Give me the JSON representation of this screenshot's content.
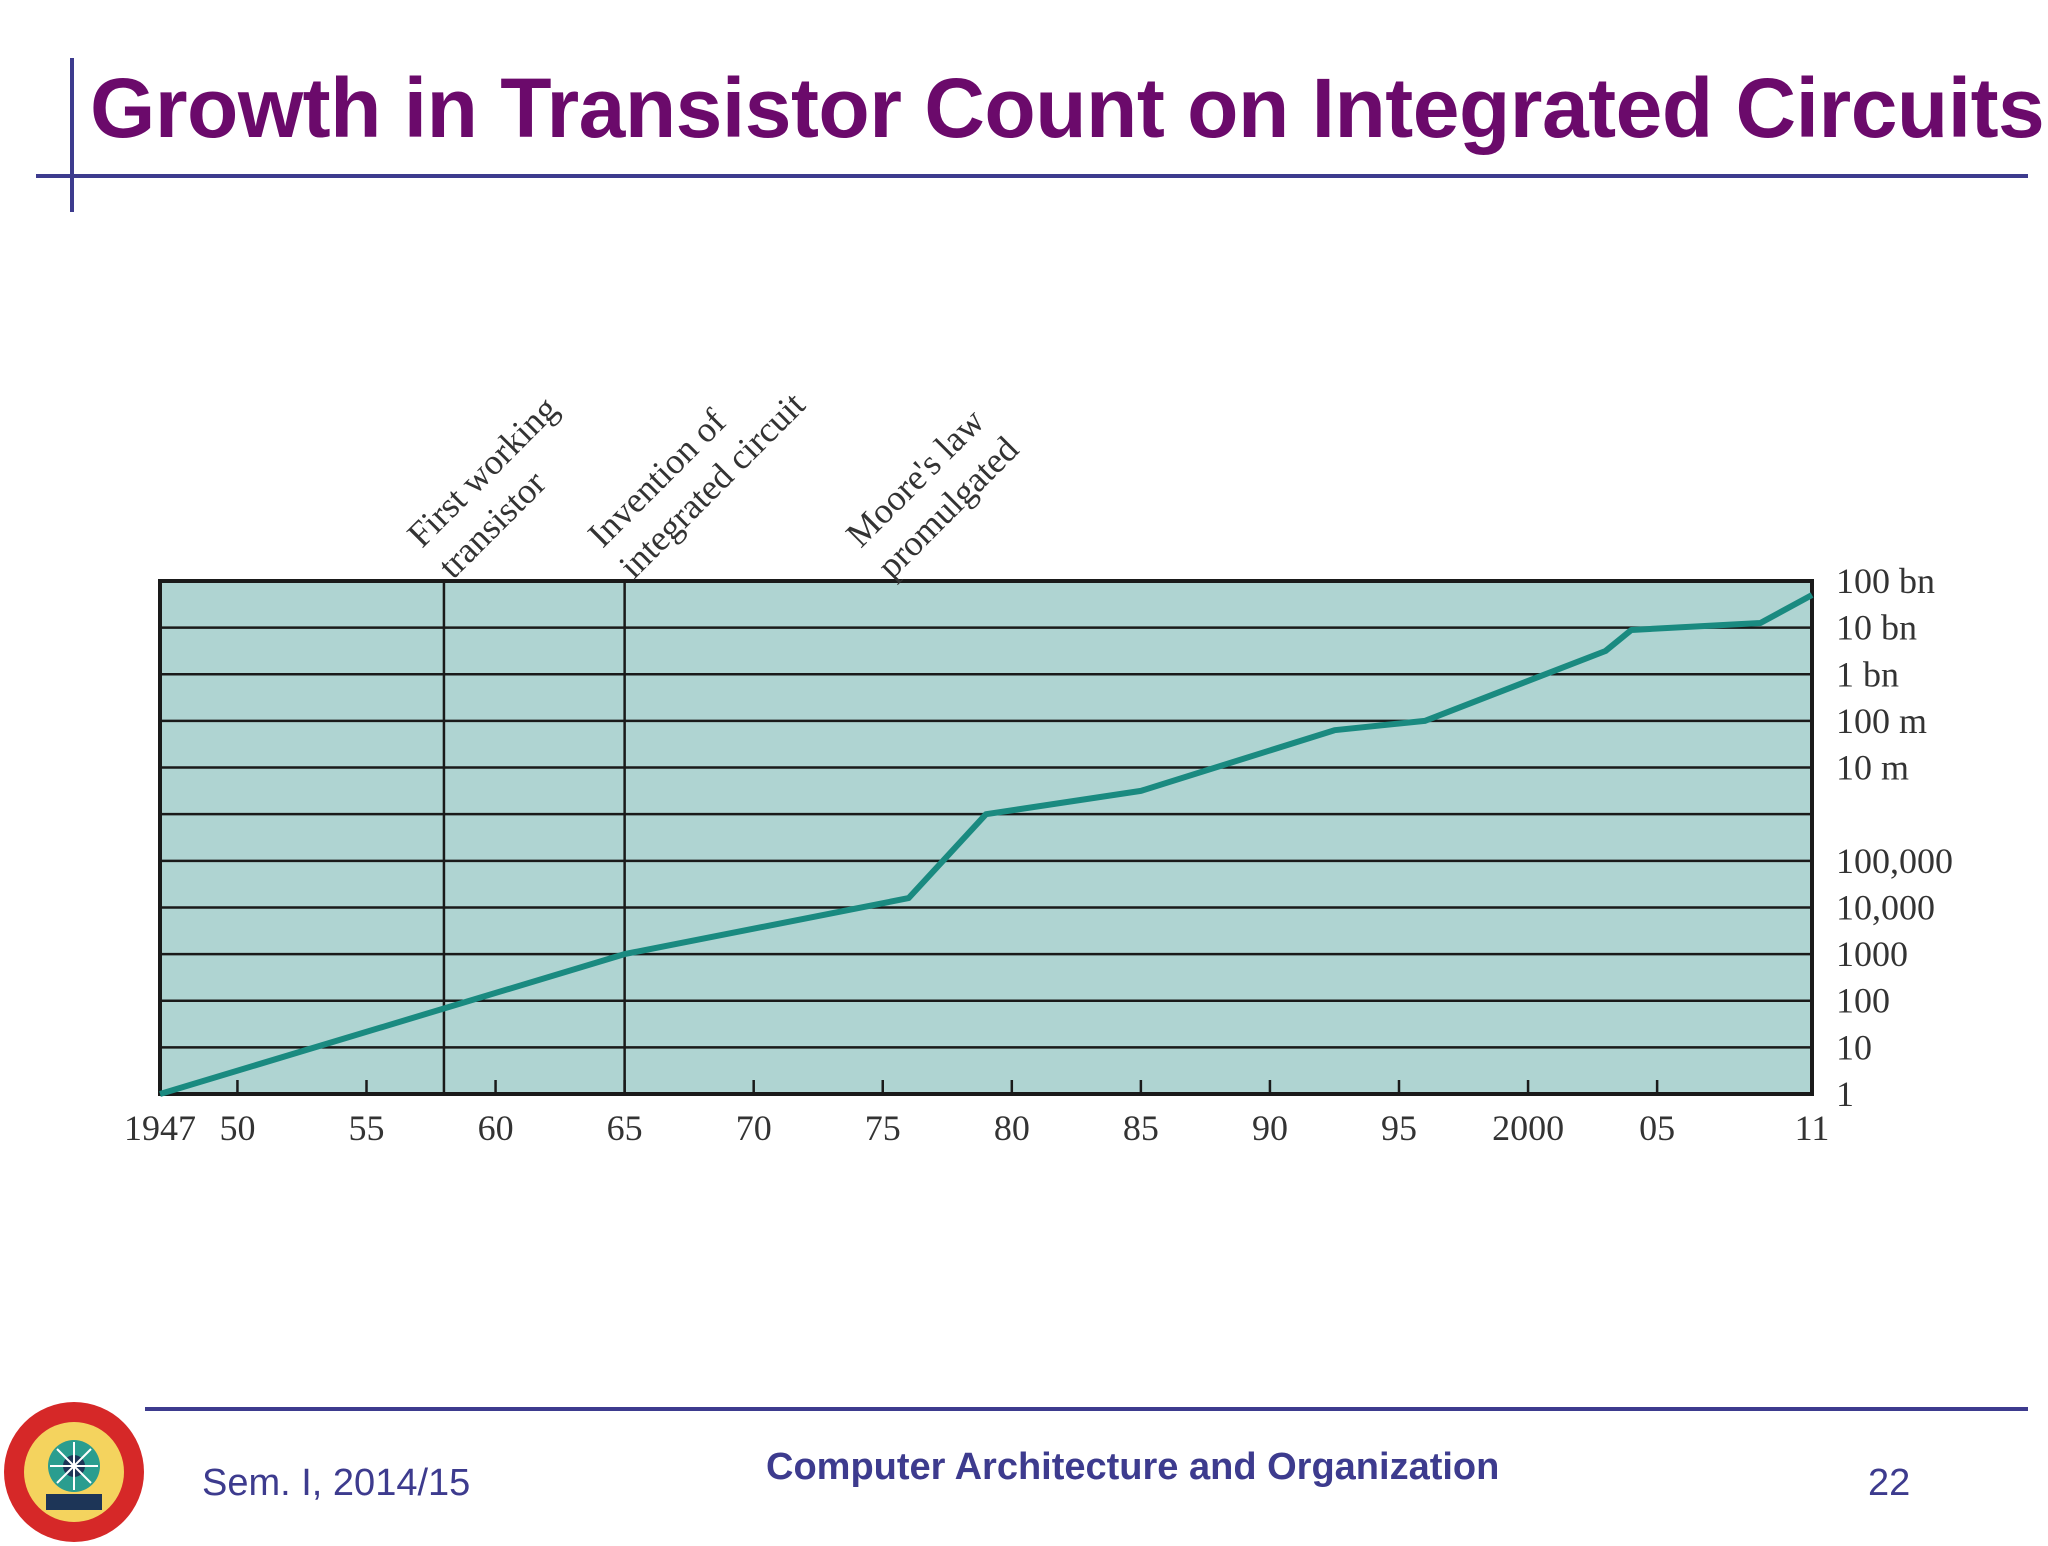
{
  "slide": {
    "title": "Growth in Transistor Count on Integrated Circuits",
    "footer_left": "Sem. I, 2014/15",
    "footer_center": "Computer Architecture and Organization",
    "page_number": "22"
  },
  "colors": {
    "title": "#6b0a6b",
    "accent": "#3d3b8e",
    "plot_fill": "#afd4d2",
    "line": "#1a8a80"
  },
  "logo": {
    "icon": "university-seal-icon"
  },
  "chart_data": {
    "type": "line",
    "title": "",
    "xlabel": "",
    "ylabel": "",
    "y_scale": "log10",
    "xlim": [
      1947,
      2011
    ],
    "ylim": [
      1,
      100000000000
    ],
    "grid": true,
    "x_ticks": [
      {
        "value": 1947,
        "label": "1947"
      },
      {
        "value": 1950,
        "label": "50"
      },
      {
        "value": 1955,
        "label": "55"
      },
      {
        "value": 1960,
        "label": "60"
      },
      {
        "value": 1965,
        "label": "65"
      },
      {
        "value": 1970,
        "label": "70"
      },
      {
        "value": 1975,
        "label": "75"
      },
      {
        "value": 1980,
        "label": "80"
      },
      {
        "value": 1985,
        "label": "85"
      },
      {
        "value": 1990,
        "label": "90"
      },
      {
        "value": 1995,
        "label": "95"
      },
      {
        "value": 2000,
        "label": "2000"
      },
      {
        "value": 2005,
        "label": "05"
      },
      {
        "value": 2011,
        "label": "11"
      }
    ],
    "y_ticks": [
      {
        "value": 1,
        "label": "1"
      },
      {
        "value": 10,
        "label": "10"
      },
      {
        "value": 100,
        "label": "100"
      },
      {
        "value": 1000,
        "label": "1000"
      },
      {
        "value": 10000,
        "label": "10,000"
      },
      {
        "value": 100000,
        "label": "100,000"
      },
      {
        "value": 10000000,
        "label": "10 m"
      },
      {
        "value": 100000000,
        "label": "100 m"
      },
      {
        "value": 1000000000,
        "label": "1 bn"
      },
      {
        "value": 10000000000,
        "label": "10 bn"
      },
      {
        "value": 100000000000,
        "label": "100 bn"
      }
    ],
    "events": [
      {
        "x": 1958,
        "label": [
          "First working",
          "transistor"
        ]
      },
      {
        "x": 1965,
        "label": [
          "Invention of",
          "integrated circuit"
        ]
      },
      {
        "x": 1975,
        "label": [
          "Moore's law",
          "promulgated"
        ]
      }
    ],
    "event_lines": [
      1958,
      1965
    ],
    "series": [
      {
        "x": [
          1947,
          1965,
          1976,
          1979,
          1985,
          1992.5,
          1996,
          2003,
          2004,
          2009,
          2011
        ],
        "y": [
          1,
          1000,
          15850,
          1000000,
          3160000,
          63100000,
          100000000,
          3160000000,
          8910000000,
          12600000000,
          50100000000
        ]
      }
    ]
  }
}
